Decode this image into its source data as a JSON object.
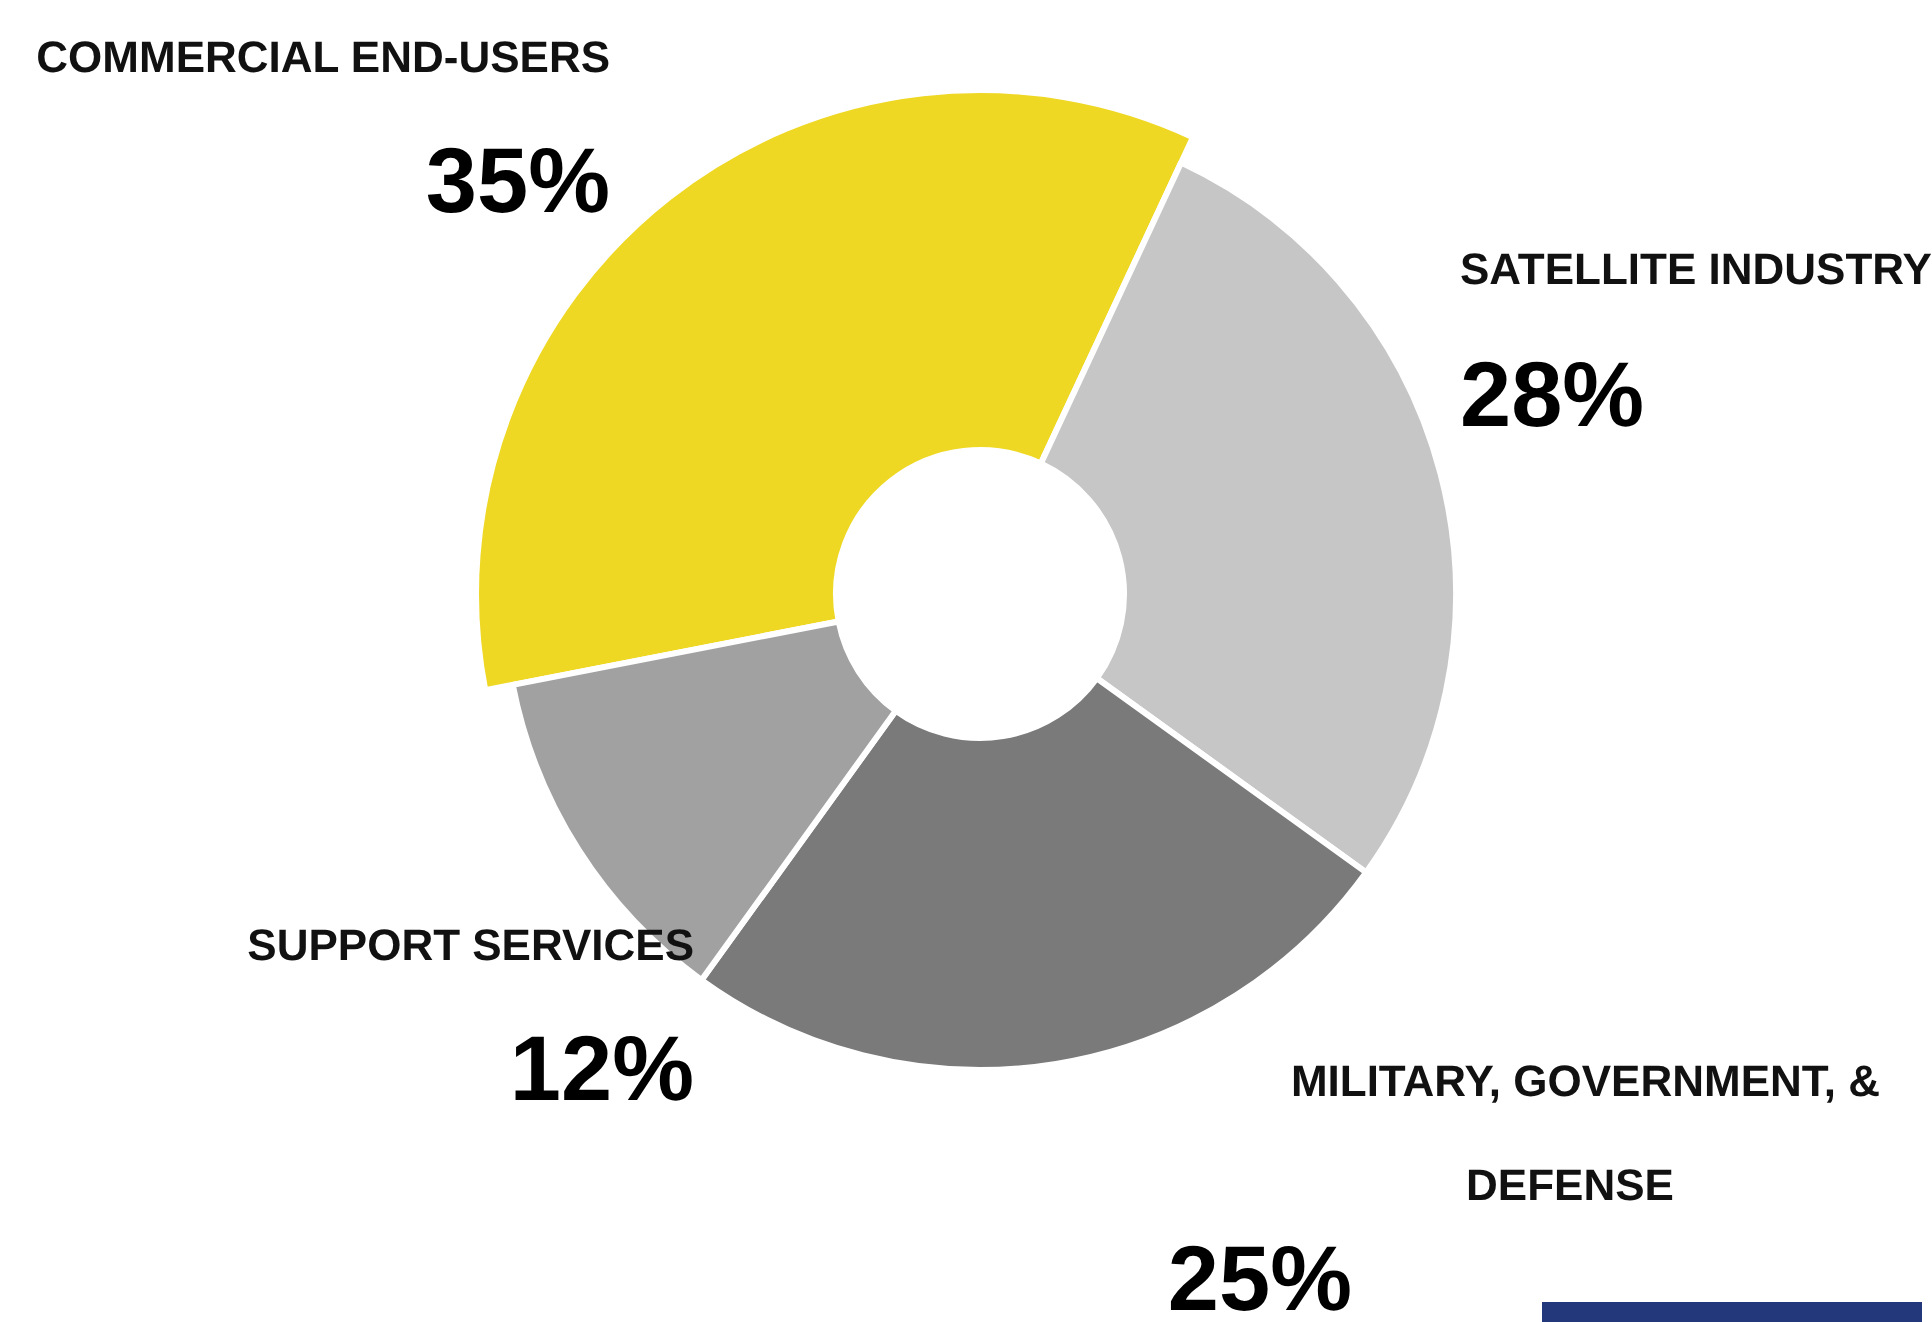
{
  "chart_data": {
    "type": "donut",
    "categories": [
      "COMMERCIAL END-USERS",
      "SATELLITE INDUSTRY",
      "MILITARY, GOVERNMENT, & DEFENSE",
      "SUPPORT SERVICES"
    ],
    "values": [
      35,
      28,
      25,
      12
    ],
    "colors": [
      "#eed823",
      "#c6c6c6",
      "#7a7a7a",
      "#a0a1a0"
    ],
    "value_labels": [
      "35%",
      "28%",
      "25%",
      "12%"
    ]
  }
}
